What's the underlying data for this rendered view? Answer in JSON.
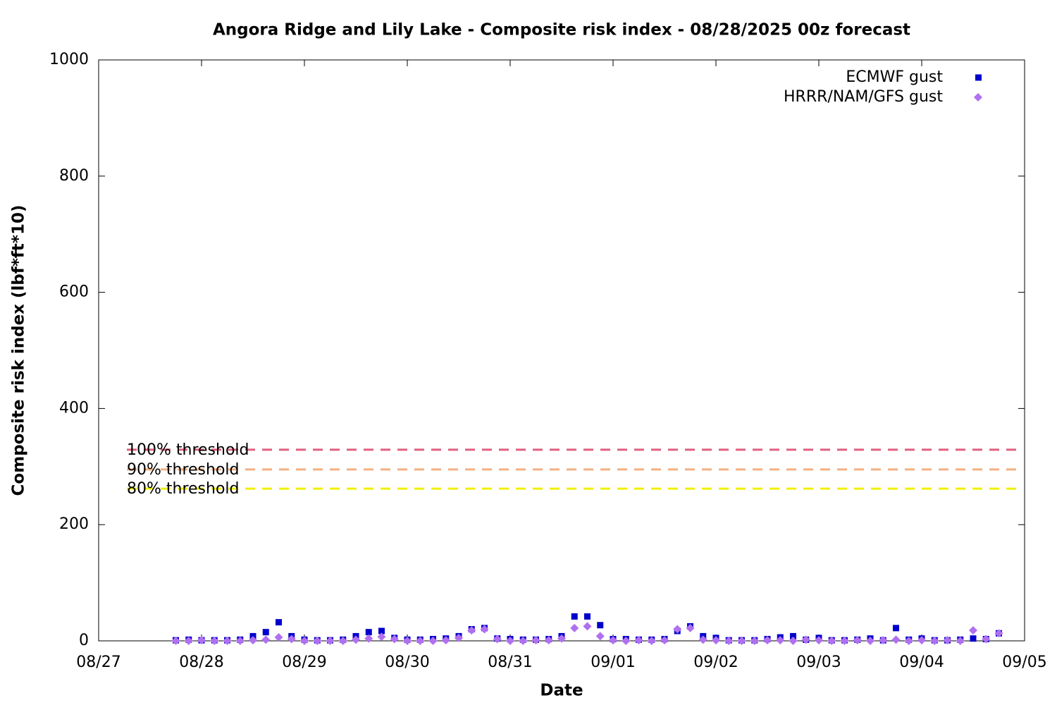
{
  "chart_data": {
    "type": "scatter",
    "title": "Angora Ridge and Lily Lake - Composite risk index - 08/28/2025 00z forecast",
    "x_label": "Date",
    "y_label": "Composite risk index (lbf*ft*10)",
    "xlim": [
      0,
      216
    ],
    "xticks": [
      {
        "value": 0,
        "label": "08/27"
      },
      {
        "value": 24,
        "label": "08/28"
      },
      {
        "value": 48,
        "label": "08/29"
      },
      {
        "value": 72,
        "label": "08/30"
      },
      {
        "value": 96,
        "label": "08/31"
      },
      {
        "value": 120,
        "label": "09/01"
      },
      {
        "value": 144,
        "label": "09/02"
      },
      {
        "value": 168,
        "label": "09/03"
      },
      {
        "value": 192,
        "label": "09/04"
      },
      {
        "value": 216,
        "label": "09/05"
      }
    ],
    "ylim": [
      0,
      1000
    ],
    "yticks": [
      0,
      200,
      400,
      600,
      800,
      1000
    ],
    "legend": "top-right",
    "x": [
      18,
      21,
      24,
      27,
      30,
      33,
      36,
      39,
      42,
      45,
      48,
      51,
      54,
      57,
      60,
      63,
      66,
      69,
      72,
      75,
      78,
      81,
      84,
      87,
      90,
      93,
      96,
      99,
      102,
      105,
      108,
      111,
      114,
      117,
      120,
      123,
      126,
      129,
      132,
      135,
      138,
      141,
      144,
      147,
      150,
      153,
      156,
      159,
      162,
      165,
      168,
      171,
      174,
      177,
      180,
      183,
      186,
      189,
      192,
      195,
      198,
      201,
      204,
      207,
      210
    ],
    "series": [
      {
        "name": "ECMWF gust",
        "color": "#0000cc",
        "marker": "square",
        "values": [
          1,
          2,
          1,
          1,
          1,
          2,
          8,
          15,
          32,
          8,
          2,
          1,
          1,
          2,
          8,
          15,
          17,
          5,
          2,
          2,
          3,
          4,
          8,
          20,
          22,
          4,
          3,
          2,
          2,
          3,
          8,
          42,
          42,
          27,
          3,
          3,
          2,
          2,
          3,
          17,
          25,
          8,
          5,
          1,
          1,
          1,
          3,
          6,
          8,
          2,
          5,
          1,
          1,
          2,
          4,
          1,
          22,
          2,
          4,
          1,
          1,
          2,
          4,
          3,
          13
        ]
      },
      {
        "name": "HRRR/NAM/GFS gust",
        "color": "#b070f0",
        "marker": "diamond",
        "values": [
          0,
          0,
          1,
          0,
          0,
          0,
          1,
          2,
          6,
          3,
          0,
          0,
          0,
          0,
          2,
          4,
          7,
          3,
          0,
          0,
          0,
          1,
          5,
          18,
          20,
          3,
          0,
          0,
          1,
          1,
          4,
          22,
          25,
          8,
          1,
          0,
          1,
          0,
          1,
          20,
          22,
          2,
          1,
          0,
          0,
          0,
          1,
          1,
          0,
          2,
          1,
          0,
          0,
          1,
          0,
          1,
          2,
          0,
          1,
          0,
          1,
          0,
          18,
          3,
          13
        ]
      }
    ],
    "thresholds": [
      {
        "label": "100% threshold",
        "value": 329,
        "color": "#e0607f"
      },
      {
        "label": "90% threshold",
        "value": 295,
        "color": "#f4b080"
      },
      {
        "label": "80% threshold",
        "value": 262,
        "color": "#f0f000"
      }
    ]
  }
}
